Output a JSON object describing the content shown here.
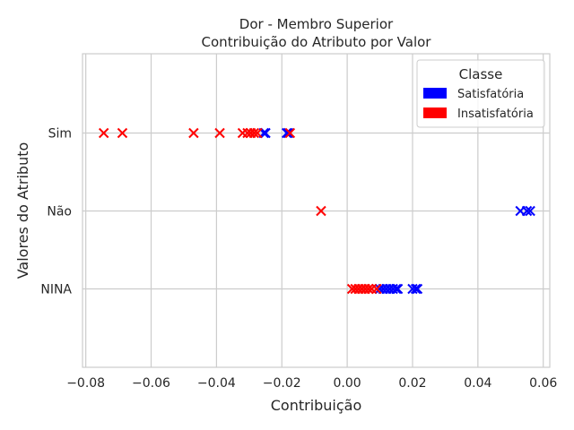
{
  "chart_data": {
    "type": "scatter",
    "title": "Dor - Membro Superior",
    "subtitle": "Contribuição do Atributo por Valor",
    "xlabel": "Contribuição",
    "ylabel": "Valores do Atributo",
    "xlim": [
      -0.081,
      0.062
    ],
    "x_ticks": [
      -0.08,
      -0.06,
      -0.04,
      -0.02,
      0.0,
      0.02,
      0.04,
      0.06
    ],
    "x_tick_labels": [
      "−0.08",
      "−0.06",
      "−0.04",
      "−0.02",
      "0.00",
      "0.02",
      "0.04",
      "0.06"
    ],
    "categories": [
      "Sim",
      "Não",
      "NINA"
    ],
    "grid": true,
    "marker": "x",
    "legend": {
      "title": "Classe",
      "placement": "top-right",
      "entries": [
        "Satisfatória",
        "Insatisfatória"
      ]
    },
    "series": [
      {
        "name": "Satisfatória",
        "color": "#0000ff",
        "points": [
          {
            "category": "Sim",
            "x": -0.025
          },
          {
            "category": "Sim",
            "x": -0.0255
          },
          {
            "category": "Sim",
            "x": -0.0185
          },
          {
            "category": "Sim",
            "x": -0.018
          },
          {
            "category": "Não",
            "x": 0.053
          },
          {
            "category": "Não",
            "x": 0.055
          },
          {
            "category": "Não",
            "x": 0.056
          },
          {
            "category": "NINA",
            "x": 0.01
          },
          {
            "category": "NINA",
            "x": 0.011
          },
          {
            "category": "NINA",
            "x": 0.012
          },
          {
            "category": "NINA",
            "x": 0.013
          },
          {
            "category": "NINA",
            "x": 0.014
          },
          {
            "category": "NINA",
            "x": 0.015
          },
          {
            "category": "NINA",
            "x": 0.0155
          },
          {
            "category": "NINA",
            "x": 0.02
          },
          {
            "category": "NINA",
            "x": 0.021
          },
          {
            "category": "NINA",
            "x": 0.0215
          }
        ]
      },
      {
        "name": "Insatisfatória",
        "color": "#ff0000",
        "points": [
          {
            "category": "Sim",
            "x": -0.0745
          },
          {
            "category": "Sim",
            "x": -0.0688
          },
          {
            "category": "Sim",
            "x": -0.047
          },
          {
            "category": "Sim",
            "x": -0.039
          },
          {
            "category": "Sim",
            "x": -0.032
          },
          {
            "category": "Sim",
            "x": -0.0305
          },
          {
            "category": "Sim",
            "x": -0.0295
          },
          {
            "category": "Sim",
            "x": -0.0285
          },
          {
            "category": "Sim",
            "x": -0.0275
          },
          {
            "category": "Sim",
            "x": -0.0175
          },
          {
            "category": "Não",
            "x": -0.008
          },
          {
            "category": "NINA",
            "x": 0.0015
          },
          {
            "category": "NINA",
            "x": 0.0025
          },
          {
            "category": "NINA",
            "x": 0.0035
          },
          {
            "category": "NINA",
            "x": 0.0045
          },
          {
            "category": "NINA",
            "x": 0.0055
          },
          {
            "category": "NINA",
            "x": 0.0065
          },
          {
            "category": "NINA",
            "x": 0.0075
          },
          {
            "category": "NINA",
            "x": 0.009
          }
        ]
      }
    ]
  }
}
